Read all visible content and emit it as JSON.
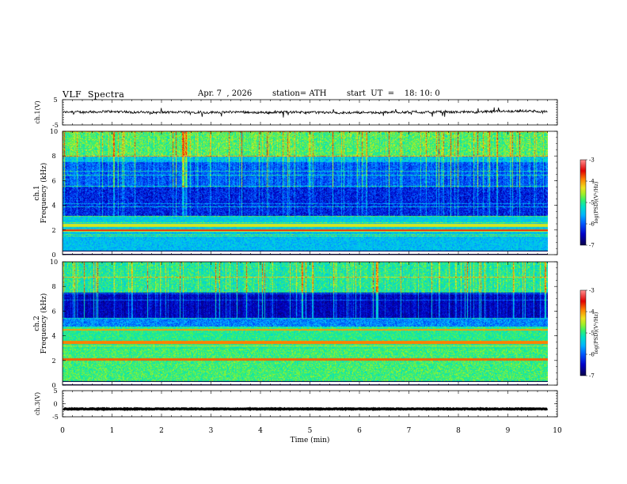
{
  "header": {
    "title": "VLF  Spectra",
    "date": "Apr. 7  , 2026",
    "station": "station= ATH",
    "start": "start  UT  =    18: 10: 0"
  },
  "chart_data": [
    {
      "type": "line",
      "id": "ch1-waveform",
      "ylabel": "ch.1(V)",
      "ylim": [
        -5,
        5
      ],
      "yticks": [
        "5",
        "-5"
      ],
      "xlim": [
        0,
        10
      ],
      "note_values": "waveform hovers around 0 V with small spiky noise",
      "baseline": 0
    },
    {
      "type": "heatmap",
      "id": "ch1-spectrogram",
      "ylabel": "ch.1\nFrequency  (kHz)",
      "ylabel_line1": "ch.1",
      "ylabel_line2": "Frequency  (kHz)",
      "ylim": [
        0,
        10
      ],
      "yticks": [
        "0",
        "2",
        "4",
        "6",
        "8",
        "10"
      ],
      "xlim": [
        0,
        10
      ],
      "data_extent_min": 9.8,
      "colorbar": {
        "label": "log(PSD)(V²/Hz)",
        "ticks": [
          "-3",
          "-4",
          "-5",
          "-6",
          "-7"
        ],
        "range": [
          -7,
          -3
        ]
      }
    },
    {
      "type": "heatmap",
      "id": "ch2-spectrogram",
      "ylabel": "ch.2\nFrequency  (kHz)",
      "ylabel_line1": "ch.2",
      "ylabel_line2": "Frequency  (kHz)",
      "ylim": [
        0,
        10
      ],
      "yticks": [
        "0",
        "2",
        "4",
        "6",
        "8",
        "10"
      ],
      "xlim": [
        0,
        10
      ],
      "data_extent_min": 9.8,
      "colorbar": {
        "label": "log(PSD)(V²/Hz)",
        "ticks": [
          "-3",
          "-4",
          "-5",
          "-6",
          "-7"
        ],
        "range": [
          -7,
          -3
        ]
      }
    },
    {
      "type": "line",
      "id": "ch3-waveform",
      "ylabel": "ch.3(V)",
      "ylim": [
        -5,
        5
      ],
      "yticks": [
        "5",
        "0",
        "-5"
      ],
      "xlim": [
        0,
        10
      ],
      "baseline": -2
    }
  ],
  "xaxis": {
    "label": "Time  (min)",
    "ticks": [
      "0",
      "1",
      "2",
      "3",
      "4",
      "5",
      "6",
      "7",
      "8",
      "9",
      "10"
    ]
  },
  "colors": {
    "spectrogram_scale": [
      "#0a0060",
      "#0000c8",
      "#0058ff",
      "#00b4ff",
      "#00e6c0",
      "#30f070",
      "#a8f030",
      "#f0e020",
      "#ff8000",
      "#e00000",
      "#ff8080",
      "#ffffff"
    ]
  }
}
